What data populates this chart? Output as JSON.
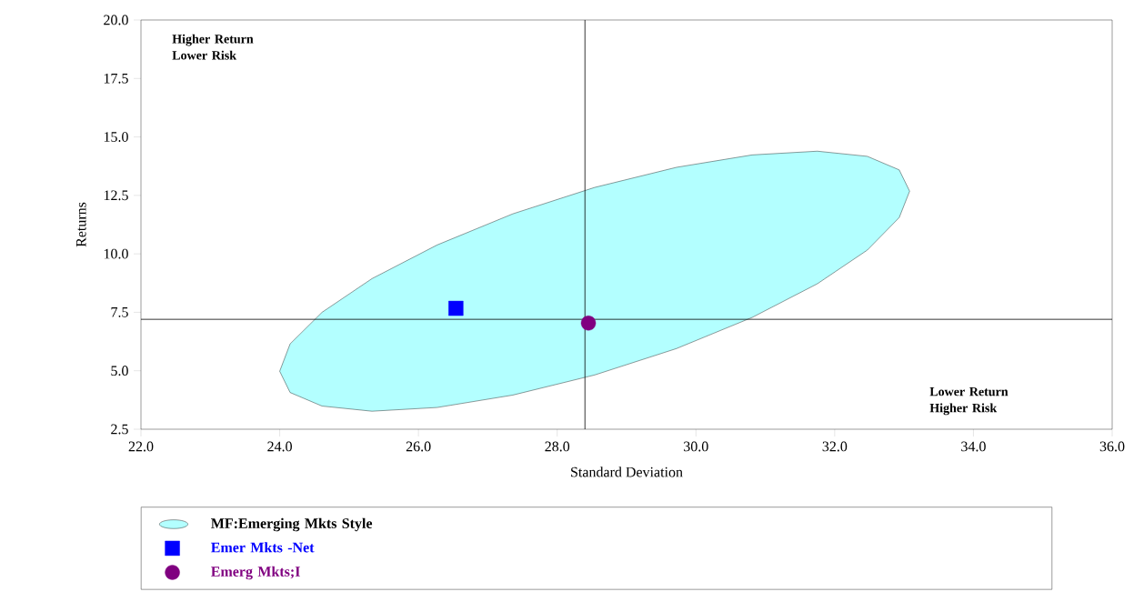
{
  "chart_data": {
    "type": "scatter",
    "xlabel": "Standard Deviation",
    "ylabel": "Returns",
    "xlim": [
      22,
      36
    ],
    "ylim": [
      2.5,
      20
    ],
    "xticks": [
      {
        "value": 22,
        "label": "22.0"
      },
      {
        "value": 24,
        "label": "24.0"
      },
      {
        "value": 26,
        "label": "26.0"
      },
      {
        "value": 28,
        "label": "28.0"
      },
      {
        "value": 30,
        "label": "30.0"
      },
      {
        "value": 32,
        "label": "32.0"
      },
      {
        "value": 34,
        "label": "34.0"
      },
      {
        "value": 36,
        "label": "36.0"
      }
    ],
    "yticks": [
      2.5,
      {
        "value": 5,
        "label": "5.0"
      },
      7.5,
      {
        "value": 10,
        "label": "10.0"
      },
      12.5,
      {
        "value": 15,
        "label": "15.0"
      },
      17.5,
      {
        "value": 20,
        "label": "20.0"
      }
    ],
    "series": [
      {
        "name": "MF:Emerging Mkts Style",
        "type": "area",
        "color": "#b3ffff",
        "x": [
          33.08,
          32.93,
          32.47,
          31.75,
          30.81,
          29.72,
          28.54,
          27.36,
          26.27,
          25.33,
          24.61,
          24.15,
          24.0,
          24.15,
          24.61,
          25.33,
          26.27,
          27.36,
          28.54,
          29.72,
          30.81,
          31.75,
          32.47,
          32.93
        ],
        "values": [
          12.68,
          13.59,
          14.17,
          14.39,
          14.23,
          13.7,
          12.84,
          11.71,
          10.38,
          8.94,
          7.5,
          6.15,
          4.98,
          4.07,
          3.49,
          3.27,
          3.43,
          3.96,
          4.82,
          5.95,
          7.28,
          8.72,
          10.16,
          11.55
        ]
      },
      {
        "name": "Emer Mkts -Net",
        "marker": "square",
        "color": "#0000ff",
        "x": [
          26.54
        ],
        "values": [
          7.67
        ]
      },
      {
        "name": "Emerg Mkts;I",
        "marker": "circle",
        "color": "#800080",
        "x": [
          28.45
        ],
        "values": [
          7.04
        ]
      }
    ],
    "ref_lines": [
      {
        "axis": "x",
        "value": 28.4
      },
      {
        "axis": "y",
        "value": 7.2
      }
    ],
    "annotations": [
      "Higher Return Lower Risk",
      "Lower Return Higher Risk"
    ],
    "legend": "bottom",
    "grid": false
  }
}
